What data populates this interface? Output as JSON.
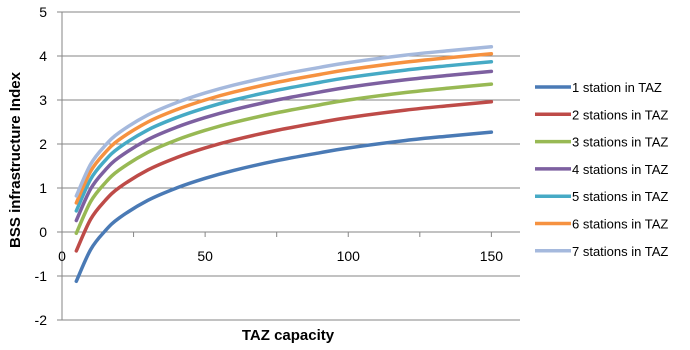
{
  "chart_data": {
    "type": "line",
    "xlabel": "TAZ capacity",
    "ylabel": "BSS infrastructure Index",
    "xlim": [
      0,
      160
    ],
    "ylim": [
      -2,
      5
    ],
    "x_ticks": [
      0,
      50,
      100,
      150
    ],
    "y_ticks": [
      -2,
      -1,
      0,
      1,
      2,
      3,
      4,
      5
    ],
    "grid": "horizontal",
    "legend_position": "right",
    "x": [
      5,
      10,
      15,
      20,
      30,
      40,
      50,
      60,
      75,
      90,
      100,
      120,
      135,
      150
    ],
    "series": [
      {
        "name": "1 station in TAZ",
        "color": "#4a7ab5",
        "values": [
          -1.12,
          -0.4,
          0.02,
          0.32,
          0.72,
          1.0,
          1.22,
          1.4,
          1.62,
          1.8,
          1.91,
          2.08,
          2.18,
          2.27
        ]
      },
      {
        "name": "2 stations in TAZ",
        "color": "#be4b48",
        "values": [
          -0.43,
          0.29,
          0.71,
          1.01,
          1.41,
          1.69,
          1.91,
          2.09,
          2.31,
          2.49,
          2.6,
          2.77,
          2.87,
          2.96
        ]
      },
      {
        "name": "3 stations in TAZ",
        "color": "#98b954",
        "values": [
          -0.03,
          0.69,
          1.11,
          1.41,
          1.81,
          2.09,
          2.31,
          2.49,
          2.71,
          2.89,
          3.0,
          3.17,
          3.27,
          3.36
        ]
      },
      {
        "name": "4 stations in TAZ",
        "color": "#7d60a0",
        "values": [
          0.26,
          0.98,
          1.4,
          1.7,
          2.1,
          2.38,
          2.6,
          2.78,
          3.0,
          3.18,
          3.29,
          3.46,
          3.56,
          3.65
        ]
      },
      {
        "name": "5 stations in TAZ",
        "color": "#46aac5",
        "values": [
          0.48,
          1.2,
          1.62,
          1.92,
          2.32,
          2.6,
          2.82,
          3.0,
          3.22,
          3.4,
          3.51,
          3.68,
          3.78,
          3.87
        ]
      },
      {
        "name": "6 stations in TAZ",
        "color": "#f69240",
        "values": [
          0.66,
          1.38,
          1.8,
          2.1,
          2.5,
          2.78,
          3.0,
          3.18,
          3.4,
          3.58,
          3.69,
          3.86,
          3.96,
          4.05
        ]
      },
      {
        "name": "7 stations in TAZ",
        "color": "#a5b9dd",
        "values": [
          0.82,
          1.54,
          1.96,
          2.26,
          2.66,
          2.94,
          3.16,
          3.34,
          3.56,
          3.74,
          3.85,
          4.02,
          4.12,
          4.21
        ]
      }
    ]
  }
}
